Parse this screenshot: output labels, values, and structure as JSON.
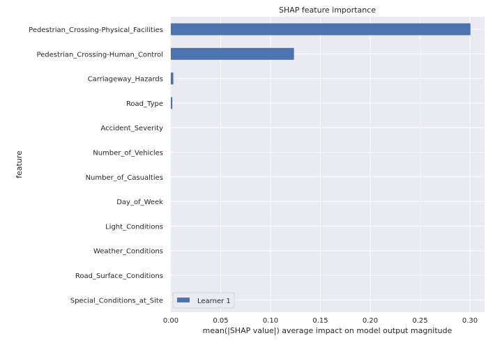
{
  "chart_data": {
    "type": "bar",
    "orientation": "horizontal",
    "title": "SHAP feature importance",
    "xlabel": "mean(|SHAP value|) average impact on model output magnitude",
    "ylabel": "feature",
    "xlim": [
      0,
      0.31
    ],
    "xticks": [
      {
        "value": 0,
        "label": "0.00"
      },
      {
        "value": 0.05,
        "label": "0.05"
      },
      {
        "value": 0.1,
        "label": "0.10"
      },
      {
        "value": 0.15,
        "label": "0.15"
      },
      {
        "value": 0.2,
        "label": "0.20"
      },
      {
        "value": 0.25,
        "label": "0.25"
      },
      {
        "value": 0.3,
        "label": "0.30"
      }
    ],
    "categories": [
      "Pedestrian_Crossing-Physical_Facilities",
      "Pedestrian_Crossing-Human_Control",
      "Carriageway_Hazards",
      "Road_Type",
      "Accident_Severity",
      "Number_of_Vehicles",
      "Number_of_Casualties",
      "Day_of_Week",
      "Light_Conditions",
      "Weather_Conditions",
      "Road_Surface_Conditions",
      "Special_Conditions_at_Site"
    ],
    "series": [
      {
        "name": "Learner 1",
        "color": "#4c72b0",
        "values": [
          0.3005,
          0.1235,
          0.0025,
          0.0015,
          0.0,
          0.0,
          0.0,
          0.0,
          0.0,
          0.0,
          0.0,
          0.0
        ]
      }
    ],
    "grid": true,
    "legend_position": "lower-left",
    "colors": {
      "background": "#eaeaf2",
      "grid": "#ffffff",
      "text": "#262626"
    }
  }
}
